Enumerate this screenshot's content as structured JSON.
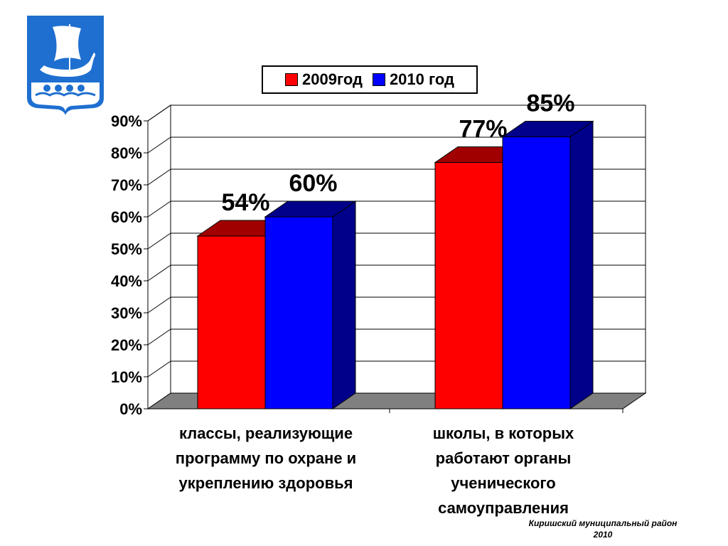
{
  "legend": {
    "series_1": "2009год",
    "series_2": "2010 год"
  },
  "category_labels": [
    [
      "классы, реализующие",
      "программу по охране и",
      "укреплению здоровья"
    ],
    [
      "школы, в которых",
      "работают органы",
      "ученического",
      "самоуправления"
    ]
  ],
  "footer": {
    "line1": "Киришский муниципальный район",
    "line2": "2010"
  },
  "colors": {
    "series_1": "#ff0000",
    "series_1_dark": "#a00000",
    "series_2": "#0000ff",
    "series_2_dark": "#00008a",
    "floor": "#808080",
    "emblem_blue": "#1e6fd0"
  },
  "icons": {
    "emblem": "ship-emblem-icon"
  },
  "chart_data": {
    "type": "bar",
    "categories": [
      "классы, реализующие программу по охране и укреплению здоровья",
      "школы, в которых работают органы ученического самоуправления"
    ],
    "series": [
      {
        "name": "2009год",
        "values": [
          54,
          77
        ],
        "labels": [
          "54%",
          "77%"
        ]
      },
      {
        "name": "2010 год",
        "values": [
          60,
          85
        ],
        "labels": [
          "60%",
          "85%"
        ]
      }
    ],
    "ylim": [
      0,
      90
    ],
    "yticks": [
      "0%",
      "10%",
      "20%",
      "30%",
      "40%",
      "50%",
      "60%",
      "70%",
      "80%",
      "90%"
    ],
    "grid": true,
    "legend_position": "top",
    "style": "3d"
  }
}
